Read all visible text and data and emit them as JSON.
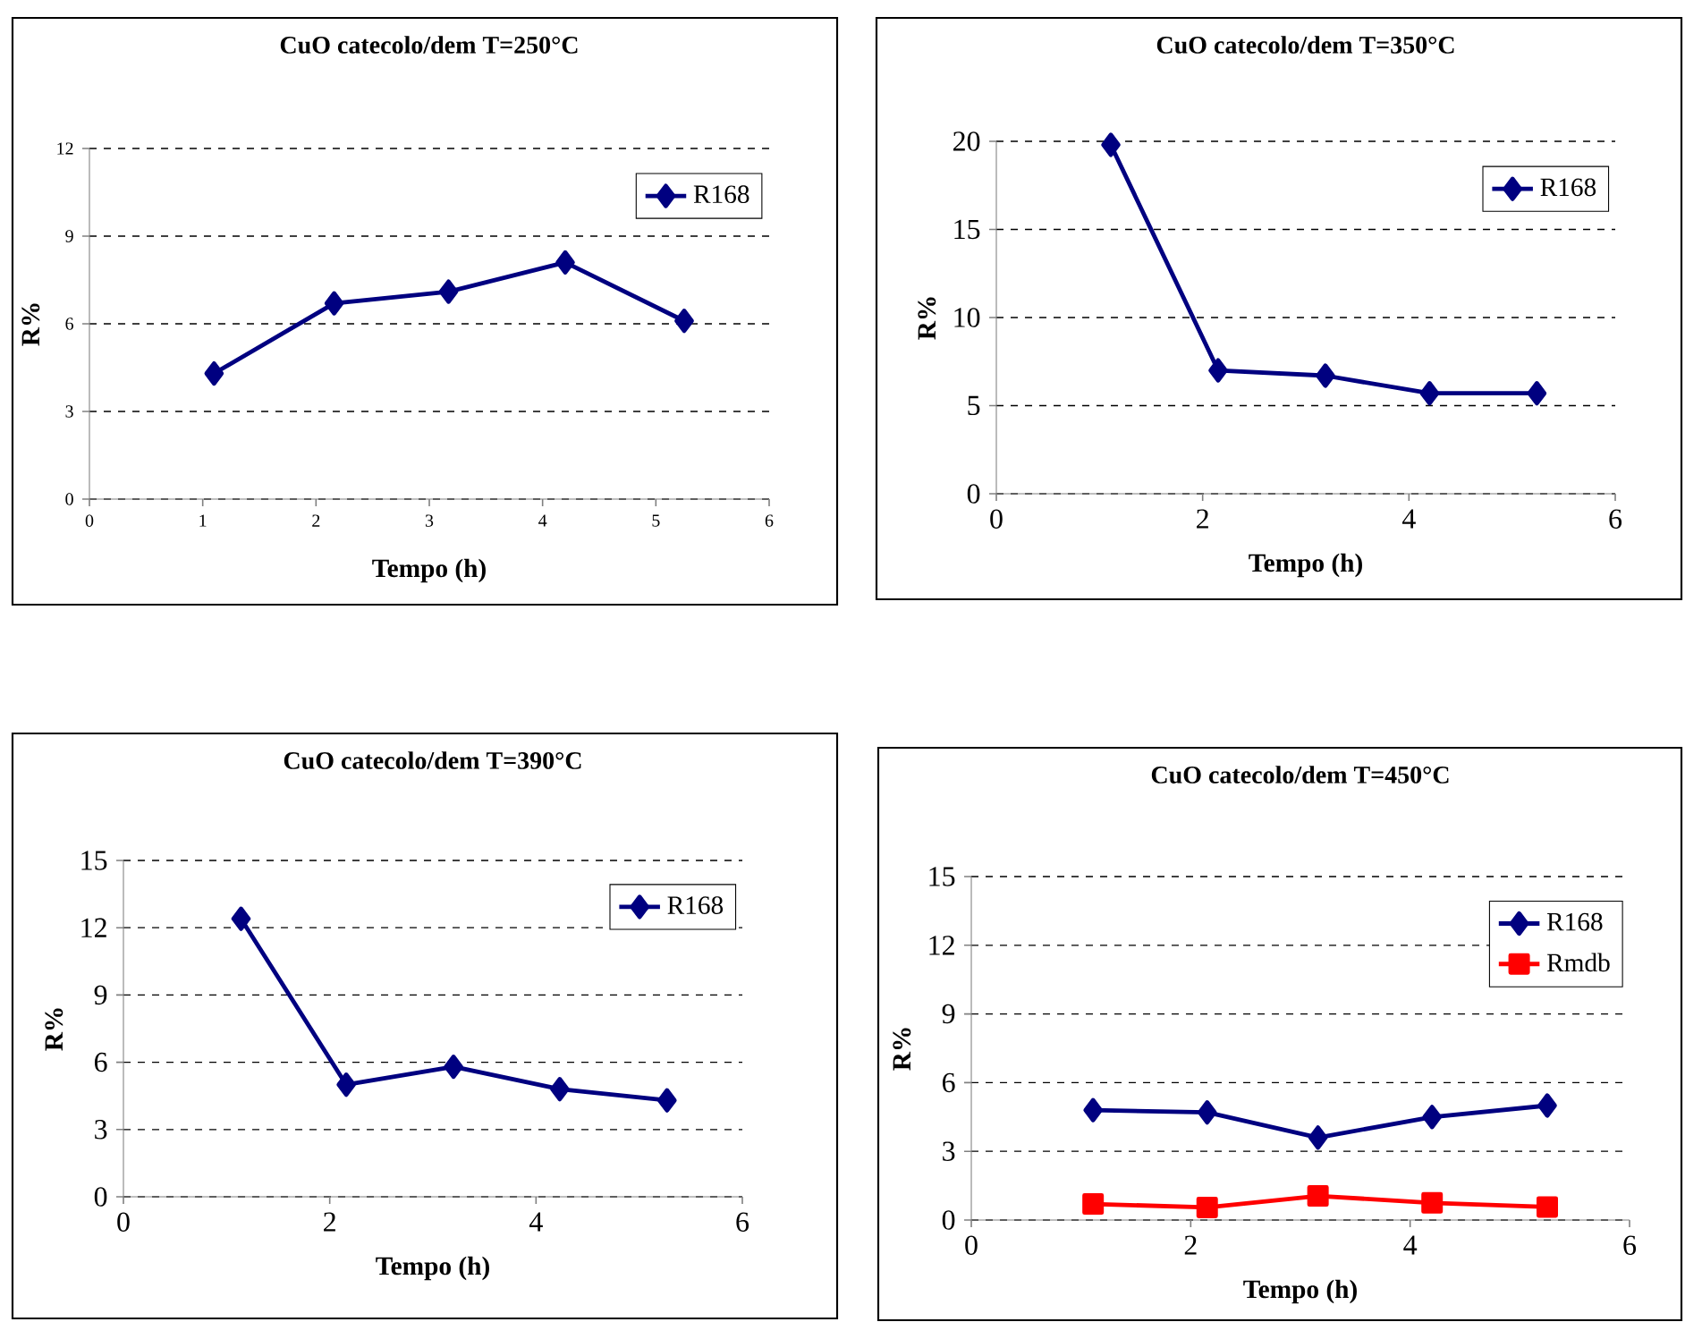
{
  "chart_data": [
    {
      "type": "line",
      "title": "CuO catecolo/dem T=250°C",
      "xlabel": "Tempo (h)",
      "ylabel": "R%",
      "x": [
        1.1,
        2.16,
        3.17,
        4.2,
        5.25
      ],
      "series": [
        {
          "name": "R168",
          "color": "#000080",
          "values": [
            4.3,
            6.7,
            7.1,
            8.1,
            6.1
          ]
        }
      ],
      "xlim": [
        0,
        6
      ],
      "ylim": [
        0,
        12
      ],
      "xticks": [
        0,
        1,
        2,
        3,
        4,
        5,
        6
      ],
      "yticks": [
        0,
        3,
        6,
        9,
        12
      ],
      "grid": "y",
      "legend": "top right",
      "marker": "diamond"
    },
    {
      "type": "line",
      "title": "CuO catecolo/dem T=350°C",
      "xlabel": "Tempo (h)",
      "ylabel": "R%",
      "x": [
        1.11,
        2.15,
        3.19,
        4.2,
        5.24
      ],
      "series": [
        {
          "name": "R168",
          "color": "#000080",
          "values": [
            19.8,
            7.0,
            6.7,
            5.7,
            5.7
          ]
        }
      ],
      "xlim": [
        0,
        6
      ],
      "ylim": [
        0,
        20
      ],
      "xticks": [
        0,
        2,
        4,
        6
      ],
      "yticks": [
        0,
        5,
        10,
        15,
        20
      ],
      "grid": "y",
      "legend": "top right",
      "marker": "diamond"
    },
    {
      "type": "line",
      "title": "CuO catecolo/dem T=390°C",
      "xlabel": "Tempo (h)",
      "ylabel": "R%",
      "x": [
        1.14,
        2.16,
        3.2,
        4.23,
        5.27
      ],
      "series": [
        {
          "name": "R168",
          "color": "#000080",
          "values": [
            12.4,
            5.0,
            5.8,
            4.8,
            4.3
          ]
        }
      ],
      "xlim": [
        0,
        6
      ],
      "ylim": [
        0,
        15
      ],
      "xticks": [
        0,
        2,
        4,
        6
      ],
      "yticks": [
        0,
        3,
        6,
        9,
        12,
        15
      ],
      "grid": "y",
      "legend": "top right",
      "marker": "diamond"
    },
    {
      "type": "line",
      "title": "CuO catecolo/dem T=450°C",
      "xlabel": "Tempo (h)",
      "ylabel": "R%",
      "x": [
        1.11,
        2.15,
        3.16,
        4.2,
        5.25
      ],
      "series": [
        {
          "name": "R168",
          "color": "#000080",
          "values": [
            4.8,
            4.7,
            3.6,
            4.5,
            5.0
          ]
        },
        {
          "name": "Rmdb",
          "color": "#ff0000",
          "values": [
            0.7,
            0.55,
            1.05,
            0.75,
            0.57
          ],
          "marker": "square"
        }
      ],
      "xlim": [
        0,
        6
      ],
      "ylim": [
        0,
        15
      ],
      "xticks": [
        0,
        2,
        4,
        6
      ],
      "yticks": [
        0,
        3,
        6,
        9,
        12,
        15
      ],
      "grid": "y",
      "legend": "top right",
      "marker": "diamond"
    }
  ]
}
